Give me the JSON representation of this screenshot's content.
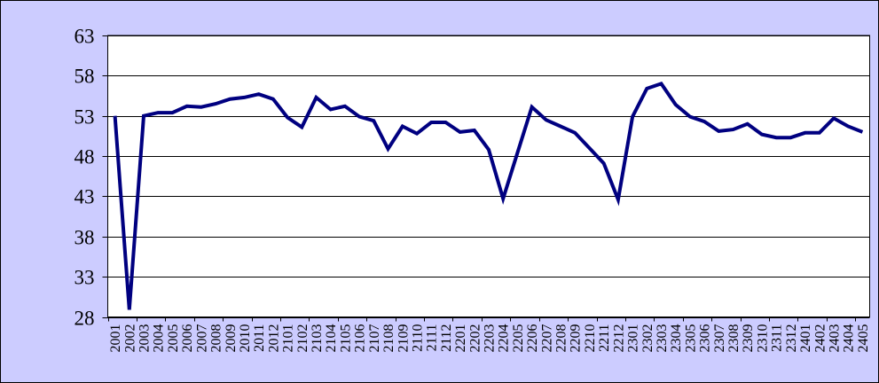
{
  "chart_data": {
    "type": "line",
    "title": "",
    "xlabel": "",
    "ylabel": "",
    "categories": [
      "2001",
      "2002",
      "2003",
      "2004",
      "2005",
      "2006",
      "2007",
      "2008",
      "2009",
      "2010",
      "2011",
      "2012",
      "2101",
      "2102",
      "2103",
      "2104",
      "2105",
      "2106",
      "2107",
      "2108",
      "2109",
      "2110",
      "2111",
      "2112",
      "2201",
      "2202",
      "2203",
      "2204",
      "2205",
      "2206",
      "2207",
      "2208",
      "2209",
      "2210",
      "2211",
      "2212",
      "2301",
      "2302",
      "2303",
      "2304",
      "2305",
      "2306",
      "2307",
      "2308",
      "2309",
      "2310",
      "2311",
      "2312",
      "2401",
      "2402",
      "2403",
      "2404",
      "2405"
    ],
    "values": [
      53.0,
      28.9,
      53.0,
      53.4,
      53.4,
      54.2,
      54.1,
      54.5,
      55.1,
      55.3,
      55.7,
      55.1,
      52.8,
      51.6,
      55.3,
      53.8,
      54.2,
      52.9,
      52.4,
      48.9,
      51.7,
      50.8,
      52.2,
      52.2,
      51.0,
      51.2,
      48.8,
      42.7,
      48.4,
      54.1,
      52.5,
      51.7,
      50.9,
      49.0,
      47.1,
      42.6,
      52.9,
      56.4,
      57.0,
      54.4,
      52.9,
      52.3,
      51.1,
      51.3,
      52.0,
      50.7,
      50.3,
      50.3,
      50.9,
      50.9,
      52.7,
      51.7,
      51.0
    ],
    "yticks": [
      28,
      33,
      38,
      43,
      48,
      53,
      58,
      63
    ],
    "ylim": [
      28,
      63
    ],
    "x_tick_interval": 2,
    "x_label_rotation": -90,
    "grid": true,
    "legend": false
  },
  "styles": {
    "page_background": "#CCCCFF",
    "plot_background": "#FFFFFF",
    "line_color": "#000080",
    "grid_color": "#000000",
    "border_color": "#000000",
    "text_color": "#000000"
  }
}
